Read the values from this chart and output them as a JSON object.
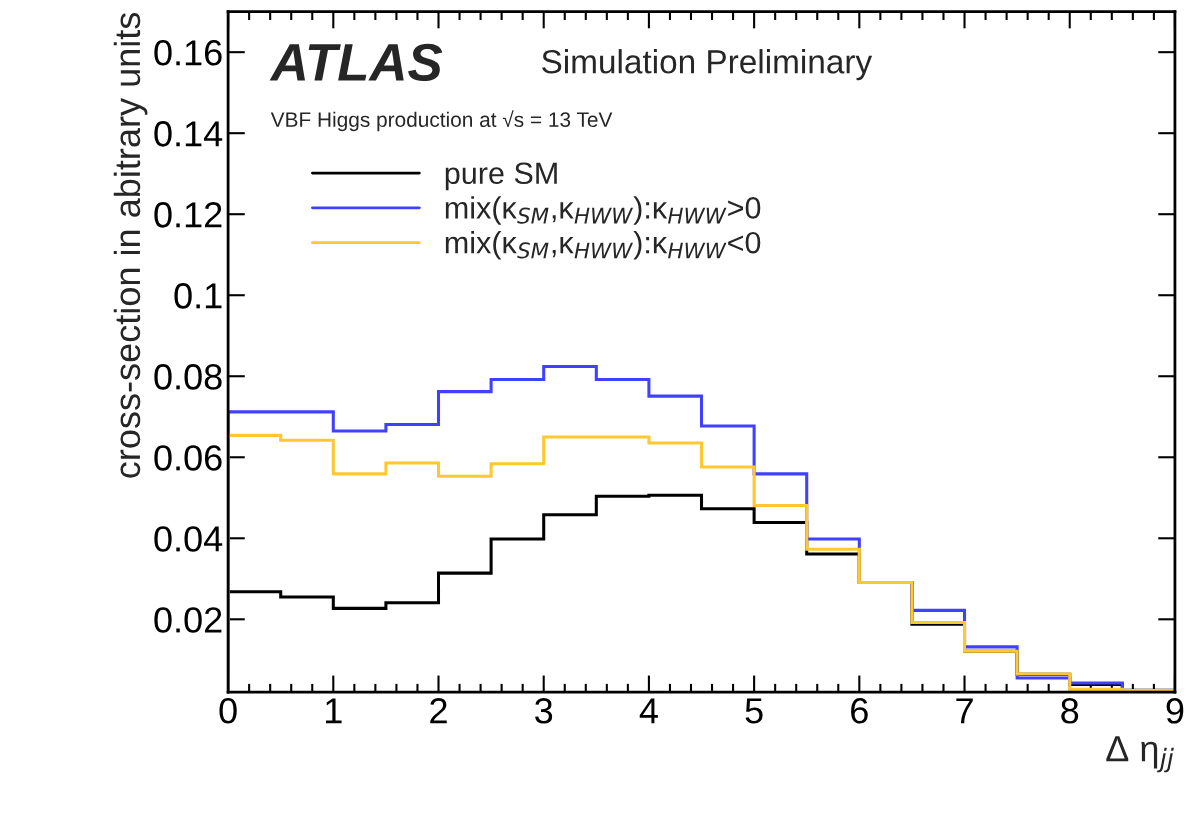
{
  "chart_data": {
    "type": "histogram",
    "title": "ATLAS",
    "annotations": [
      "Simulation Preliminary",
      "VBF Higgs production at √s = 13 TeV"
    ],
    "xlabel": "Δ η$_{jj}$",
    "ylabel": "cross-section in abitrary units",
    "bins": [
      0,
      0.5,
      1,
      1.5,
      2,
      2.5,
      3,
      3.5,
      4,
      4.5,
      5,
      5.5,
      6,
      6.5,
      7,
      7.5,
      8,
      8.5,
      9
    ],
    "series": [
      {
        "name": "pure SM",
        "color": "#000000",
        "values": [
          0.0268,
          0.0255,
          0.0227,
          0.0241,
          0.0314,
          0.0398,
          0.0458,
          0.0504,
          0.0506,
          0.0473,
          0.0439,
          0.0361,
          0.0291,
          0.0188,
          0.0121,
          0.0064,
          0.0039,
          0.0025
        ]
      },
      {
        "name": "mix(κ$_{SM}$,κ$_{HWW}$):κ$_{HWW}$>0",
        "color": "#4040ff",
        "values": [
          0.0712,
          0.0712,
          0.0665,
          0.0681,
          0.0762,
          0.0792,
          0.0824,
          0.0792,
          0.0751,
          0.0677,
          0.0559,
          0.0398,
          0.0291,
          0.0222,
          0.0132,
          0.0055,
          0.0043,
          0.0024
        ]
      },
      {
        "name": "mix(κ$_{SM}$,κ$_{HWW}$):κ$_{HWW}$<0",
        "color": "#ffc830",
        "values": [
          0.0654,
          0.0642,
          0.0559,
          0.0586,
          0.0553,
          0.0584,
          0.065,
          0.065,
          0.0635,
          0.0576,
          0.0481,
          0.0373,
          0.0291,
          0.0192,
          0.0121,
          0.0065,
          0.0027,
          0.0024
        ]
      }
    ],
    "xlim": [
      0,
      9
    ],
    "ylim": [
      0.002,
      0.17
    ],
    "xticks": [
      0,
      1,
      2,
      3,
      4,
      5,
      6,
      7,
      8,
      9
    ],
    "yticks": [
      0.02,
      0.04,
      0.06,
      0.08,
      0.1,
      0.12,
      0.14,
      0.16
    ],
    "legend": "top left"
  }
}
